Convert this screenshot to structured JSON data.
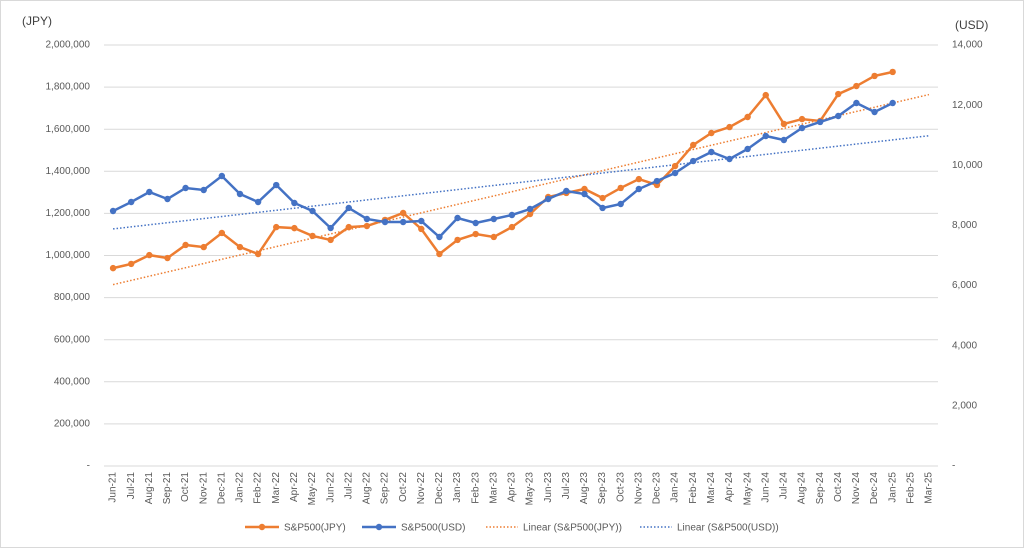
{
  "chart_data": {
    "type": "line",
    "y_axis_label": "(JPY)",
    "y2_axis_label": "(USD)",
    "categories": [
      "Jun-21",
      "Jul-21",
      "Aug-21",
      "Sep-21",
      "Oct-21",
      "Nov-21",
      "Dec-21",
      "Jan-22",
      "Feb-22",
      "Mar-22",
      "Apr-22",
      "May-22",
      "Jun-22",
      "Jul-22",
      "Aug-22",
      "Sep-22",
      "Oct-22",
      "Nov-22",
      "Dec-22",
      "Jan-23",
      "Feb-23",
      "Mar-23",
      "Apr-23",
      "May-23",
      "Jun-23",
      "Jul-23",
      "Aug-23",
      "Sep-23",
      "Oct-23",
      "Nov-23",
      "Dec-23",
      "Jan-24",
      "Feb-24",
      "Mar-24",
      "Apr-24",
      "May-24",
      "Jun-24",
      "Jul-24",
      "Aug-24",
      "Sep-24",
      "Oct-24",
      "Nov-24",
      "Dec-24",
      "Jan-25",
      "Feb-25",
      "Mar-25"
    ],
    "series": [
      {
        "name": "S&P500(JPY)",
        "color": "#ed7d31",
        "axis": "y",
        "values": [
          940000,
          960000,
          1002000,
          988000,
          1050000,
          1040000,
          1107000,
          1040000,
          1007000,
          1135000,
          1130000,
          1093000,
          1074000,
          1135000,
          1140000,
          1169000,
          1202000,
          1126000,
          1007000,
          1074000,
          1102000,
          1088000,
          1135000,
          1197000,
          1278000,
          1297000,
          1316000,
          1273000,
          1321000,
          1363000,
          1335000,
          1425000,
          1525000,
          1582000,
          1610000,
          1658000,
          1762000,
          1625000,
          1648000,
          1639000,
          1767000,
          1805000,
          1853000,
          1872000,
          null,
          null
        ]
      },
      {
        "name": "S&P500(USD)",
        "color": "#4472c4",
        "axis": "y2",
        "values": [
          8480,
          8779,
          9112,
          8879,
          9245,
          9178,
          9644,
          9045,
          8779,
          9344,
          8746,
          8480,
          7914,
          8580,
          8214,
          8114,
          8114,
          8147,
          7615,
          8247,
          8081,
          8214,
          8347,
          8546,
          8879,
          9145,
          9045,
          8580,
          8713,
          9211,
          9477,
          9743,
          10142,
          10442,
          10209,
          10542,
          10974,
          10841,
          11240,
          11440,
          11639,
          12071,
          11772,
          12071,
          null,
          null
        ]
      }
    ],
    "trendlines": [
      {
        "name": "Linear (S&P500(JPY))",
        "series": 0,
        "color": "#ed7d31"
      },
      {
        "name": "Linear (S&P500(USD))",
        "series": 1,
        "color": "#4472c4"
      }
    ],
    "ylim": [
      0,
      2000000
    ],
    "yticks": [
      {
        "value": 0,
        "label": "-"
      },
      {
        "value": 200000,
        "label": "200,000"
      },
      {
        "value": 400000,
        "label": "400,000"
      },
      {
        "value": 600000,
        "label": "600,000"
      },
      {
        "value": 800000,
        "label": "800,000"
      },
      {
        "value": 1000000,
        "label": "1,000,000"
      },
      {
        "value": 1200000,
        "label": "1,200,000"
      },
      {
        "value": 1400000,
        "label": "1,400,000"
      },
      {
        "value": 1600000,
        "label": "1,600,000"
      },
      {
        "value": 1800000,
        "label": "1,800,000"
      },
      {
        "value": 2000000,
        "label": "2,000,000"
      }
    ],
    "y2lim": [
      0,
      14000
    ],
    "y2ticks": [
      {
        "value": 0,
        "label": "-"
      },
      {
        "value": 2000,
        "label": "2,000"
      },
      {
        "value": 4000,
        "label": "4,000"
      },
      {
        "value": 6000,
        "label": "6,000"
      },
      {
        "value": 8000,
        "label": "8,000"
      },
      {
        "value": 10000,
        "label": "10,000"
      },
      {
        "value": 12000,
        "label": "12,000"
      },
      {
        "value": 14000,
        "label": "14,000"
      }
    ],
    "grid": true,
    "legend": "bottom"
  }
}
